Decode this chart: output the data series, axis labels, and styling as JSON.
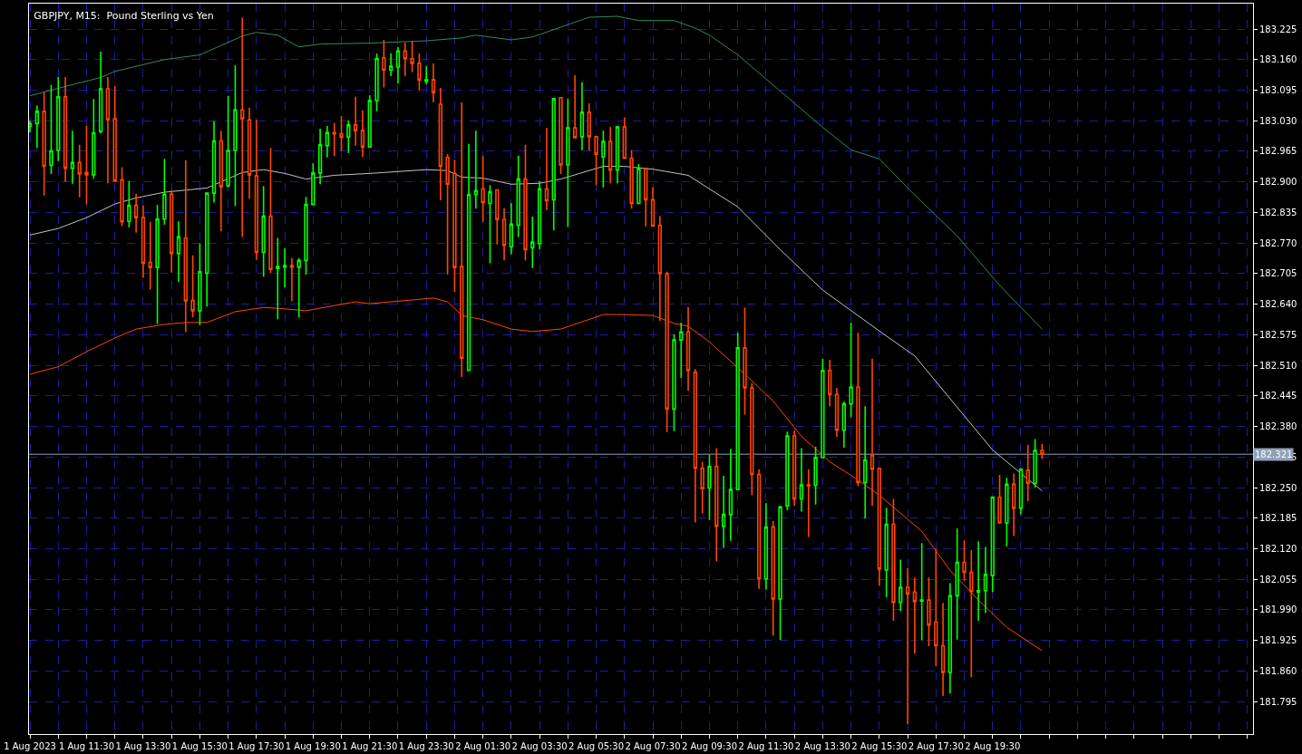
{
  "chart_data": {
    "type": "candlestick",
    "title": "GBPJPY, M15:  Pound Sterling vs Yen",
    "x": [
      "2023-08-01T09:30",
      "2023-08-01T09:45",
      "2023-08-01T10:00",
      "2023-08-01T10:15",
      "2023-08-01T10:30",
      "2023-08-01T10:45",
      "2023-08-01T11:00",
      "2023-08-01T11:15",
      "2023-08-01T11:30",
      "2023-08-01T11:45",
      "2023-08-01T12:00",
      "2023-08-01T12:15",
      "2023-08-01T12:30",
      "2023-08-01T12:45",
      "2023-08-01T13:00",
      "2023-08-01T13:15",
      "2023-08-01T13:30",
      "2023-08-01T13:45",
      "2023-08-01T14:00",
      "2023-08-01T14:15",
      "2023-08-01T14:30",
      "2023-08-01T14:45",
      "2023-08-01T15:00",
      "2023-08-01T15:15",
      "2023-08-01T15:30",
      "2023-08-01T15:45",
      "2023-08-01T16:00",
      "2023-08-01T16:15",
      "2023-08-01T16:30",
      "2023-08-01T16:45",
      "2023-08-01T17:00",
      "2023-08-01T17:15",
      "2023-08-01T17:30",
      "2023-08-01T17:45",
      "2023-08-01T18:00",
      "2023-08-01T18:15",
      "2023-08-01T18:30",
      "2023-08-01T18:45",
      "2023-08-01T19:00",
      "2023-08-01T19:15",
      "2023-08-01T19:30",
      "2023-08-01T19:45",
      "2023-08-01T20:00",
      "2023-08-01T20:15",
      "2023-08-01T20:30",
      "2023-08-01T20:45",
      "2023-08-01T21:00",
      "2023-08-01T21:15",
      "2023-08-01T21:30",
      "2023-08-01T21:45",
      "2023-08-01T22:00",
      "2023-08-01T22:15",
      "2023-08-01T22:30",
      "2023-08-01T22:45",
      "2023-08-01T23:00",
      "2023-08-01T23:15",
      "2023-08-01T23:30",
      "2023-08-01T23:45",
      "2023-08-02T00:00",
      "2023-08-02T00:15",
      "2023-08-02T00:30",
      "2023-08-02T00:45",
      "2023-08-02T01:00",
      "2023-08-02T01:15",
      "2023-08-02T01:30",
      "2023-08-02T01:45",
      "2023-08-02T02:00",
      "2023-08-02T02:15",
      "2023-08-02T02:30",
      "2023-08-02T02:45",
      "2023-08-02T03:00",
      "2023-08-02T03:15",
      "2023-08-02T03:30",
      "2023-08-02T03:45",
      "2023-08-02T04:00",
      "2023-08-02T04:15",
      "2023-08-02T04:30",
      "2023-08-02T04:45",
      "2023-08-02T05:00",
      "2023-08-02T05:15",
      "2023-08-02T05:30",
      "2023-08-02T05:45",
      "2023-08-02T06:00",
      "2023-08-02T06:15",
      "2023-08-02T06:30",
      "2023-08-02T06:45",
      "2023-08-02T07:00",
      "2023-08-02T07:15",
      "2023-08-02T07:30",
      "2023-08-02T07:45",
      "2023-08-02T08:00",
      "2023-08-02T08:15",
      "2023-08-02T08:30",
      "2023-08-02T08:45",
      "2023-08-02T09:00",
      "2023-08-02T09:15",
      "2023-08-02T09:30",
      "2023-08-02T09:45",
      "2023-08-02T10:00",
      "2023-08-02T10:15",
      "2023-08-02T10:30",
      "2023-08-02T10:45",
      "2023-08-02T11:00",
      "2023-08-02T11:15",
      "2023-08-02T11:30",
      "2023-08-02T11:45",
      "2023-08-02T12:00",
      "2023-08-02T12:15",
      "2023-08-02T12:30",
      "2023-08-02T12:45",
      "2023-08-02T13:00",
      "2023-08-02T13:15",
      "2023-08-02T13:30",
      "2023-08-02T13:45",
      "2023-08-02T14:00",
      "2023-08-02T14:15",
      "2023-08-02T14:30",
      "2023-08-02T14:45",
      "2023-08-02T15:00",
      "2023-08-02T15:15",
      "2023-08-02T15:30",
      "2023-08-02T15:45",
      "2023-08-02T16:00",
      "2023-08-02T16:15",
      "2023-08-02T16:30",
      "2023-08-02T16:45",
      "2023-08-02T17:00",
      "2023-08-02T17:15",
      "2023-08-02T17:30",
      "2023-08-02T17:45",
      "2023-08-02T18:00",
      "2023-08-02T18:15",
      "2023-08-02T18:30",
      "2023-08-02T18:45",
      "2023-08-02T19:00",
      "2023-08-02T19:15",
      "2023-08-02T19:30",
      "2023-08-02T19:45",
      "2023-08-02T20:00",
      "2023-08-02T20:15",
      "2023-08-02T20:30",
      "2023-08-02T20:45",
      "2023-08-02T21:00",
      "2023-08-02T21:15"
    ],
    "ohlc": [
      [
        183.018,
        183.03,
        183.005,
        183.024
      ],
      [
        183.024,
        183.062,
        182.972,
        183.05
      ],
      [
        183.05,
        183.091,
        182.871,
        182.933
      ],
      [
        182.935,
        183.106,
        182.917,
        182.966
      ],
      [
        182.967,
        183.123,
        182.944,
        183.081
      ],
      [
        183.081,
        183.123,
        182.9,
        182.929
      ],
      [
        182.929,
        183.009,
        182.896,
        182.941
      ],
      [
        182.941,
        182.979,
        182.867,
        182.917
      ],
      [
        182.92,
        183.019,
        182.852,
        182.915
      ],
      [
        182.915,
        183.076,
        182.907,
        183.004
      ],
      [
        183.007,
        183.177,
        183.003,
        183.098
      ],
      [
        183.098,
        183.123,
        182.897,
        183.032
      ],
      [
        183.034,
        183.103,
        182.9,
        182.902
      ],
      [
        182.904,
        182.931,
        182.806,
        182.815
      ],
      [
        182.816,
        182.902,
        182.803,
        182.85
      ],
      [
        182.85,
        182.875,
        182.792,
        182.824
      ],
      [
        182.824,
        182.85,
        182.696,
        182.727
      ],
      [
        182.729,
        182.815,
        182.671,
        182.718
      ],
      [
        182.718,
        182.851,
        182.598,
        182.821
      ],
      [
        182.821,
        182.949,
        182.809,
        182.874
      ],
      [
        182.874,
        182.882,
        182.707,
        182.748
      ],
      [
        182.748,
        182.816,
        182.687,
        182.783
      ],
      [
        182.781,
        182.946,
        182.581,
        182.647
      ],
      [
        182.648,
        182.744,
        182.612,
        182.626
      ],
      [
        182.626,
        182.769,
        182.595,
        182.709
      ],
      [
        182.706,
        182.876,
        182.635,
        182.876
      ],
      [
        182.876,
        183.029,
        182.856,
        182.987
      ],
      [
        182.987,
        183.009,
        182.795,
        182.89
      ],
      [
        182.892,
        183.083,
        182.888,
        182.967
      ],
      [
        182.967,
        183.148,
        182.849,
        183.053
      ],
      [
        183.053,
        183.249,
        182.783,
        183.034
      ],
      [
        183.032,
        183.058,
        182.864,
        182.915
      ],
      [
        182.913,
        183.032,
        182.734,
        182.75
      ],
      [
        182.75,
        182.891,
        182.698,
        182.827
      ],
      [
        182.827,
        182.972,
        182.706,
        182.714
      ],
      [
        182.716,
        182.781,
        182.608,
        182.72
      ],
      [
        182.719,
        182.759,
        182.676,
        182.722
      ],
      [
        182.722,
        182.738,
        182.646,
        182.719
      ],
      [
        182.719,
        182.738,
        182.612,
        182.733
      ],
      [
        182.733,
        182.868,
        182.703,
        182.852
      ],
      [
        182.852,
        182.94,
        182.852,
        182.919
      ],
      [
        182.919,
        183.013,
        182.895,
        182.979
      ],
      [
        182.977,
        183.019,
        182.952,
        183.005
      ],
      [
        183.005,
        183.025,
        182.955,
        183.002
      ],
      [
        183.002,
        183.04,
        182.966,
        182.995
      ],
      [
        182.995,
        183.031,
        182.961,
        183.021
      ],
      [
        183.021,
        183.081,
        182.977,
        183.009
      ],
      [
        183.009,
        183.052,
        182.953,
        182.974
      ],
      [
        182.974,
        183.084,
        182.974,
        183.073
      ],
      [
        183.073,
        183.173,
        183.05,
        183.162
      ],
      [
        183.164,
        183.202,
        183.101,
        183.138
      ],
      [
        183.138,
        183.173,
        183.125,
        183.146
      ],
      [
        183.144,
        183.187,
        183.109,
        183.178
      ],
      [
        183.178,
        183.196,
        183.125,
        183.162
      ],
      [
        183.162,
        183.2,
        183.133,
        183.152
      ],
      [
        183.152,
        183.173,
        183.094,
        183.117
      ],
      [
        183.114,
        183.146,
        183.107,
        183.117
      ],
      [
        183.117,
        183.152,
        183.069,
        183.09
      ],
      [
        183.065,
        183.1,
        182.861,
        182.933
      ],
      [
        182.952,
        182.959,
        182.703,
        182.895
      ],
      [
        182.918,
        182.947,
        182.666,
        182.718
      ],
      [
        182.72,
        183.069,
        182.485,
        182.525
      ],
      [
        182.499,
        182.981,
        182.499,
        182.873
      ],
      [
        182.873,
        183.009,
        182.843,
        182.881
      ],
      [
        182.885,
        182.955,
        182.815,
        182.856
      ],
      [
        182.854,
        182.893,
        182.727,
        182.879
      ],
      [
        182.883,
        182.883,
        182.767,
        182.82
      ],
      [
        182.82,
        182.844,
        182.733,
        182.765
      ],
      [
        182.762,
        182.855,
        182.746,
        182.81
      ],
      [
        182.808,
        182.956,
        182.783,
        182.906
      ],
      [
        182.906,
        182.979,
        182.733,
        182.756
      ],
      [
        182.76,
        182.826,
        182.717,
        182.772
      ],
      [
        182.769,
        182.902,
        182.757,
        182.885
      ],
      [
        182.885,
        183.015,
        182.84,
        182.86
      ],
      [
        182.862,
        183.077,
        182.797,
        183.077
      ],
      [
        183.079,
        183.079,
        182.917,
        182.936
      ],
      [
        182.936,
        183.077,
        182.804,
        183.015
      ],
      [
        183.015,
        183.127,
        182.994,
        182.994
      ],
      [
        182.996,
        183.112,
        182.967,
        183.048
      ],
      [
        183.048,
        183.067,
        182.967,
        182.996
      ],
      [
        182.996,
        182.996,
        182.893,
        182.959
      ],
      [
        182.953,
        183.009,
        182.888,
        182.986
      ],
      [
        182.986,
        183.017,
        182.897,
        182.925
      ],
      [
        182.925,
        183.019,
        182.897,
        183.017
      ],
      [
        183.017,
        183.037,
        182.95,
        182.95
      ],
      [
        182.95,
        182.968,
        182.843,
        182.854
      ],
      [
        182.854,
        182.938,
        182.854,
        182.928
      ],
      [
        182.928,
        182.928,
        182.805,
        182.862
      ],
      [
        182.862,
        182.889,
        182.805,
        182.806
      ],
      [
        182.808,
        182.827,
        182.604,
        182.705
      ],
      [
        182.704,
        182.709,
        182.368,
        182.417
      ],
      [
        182.417,
        182.576,
        182.37,
        182.564
      ],
      [
        182.564,
        182.601,
        182.483,
        182.581
      ],
      [
        182.581,
        182.634,
        182.456,
        182.499
      ],
      [
        182.495,
        182.502,
        182.176,
        182.291
      ],
      [
        182.291,
        182.305,
        182.195,
        182.248
      ],
      [
        182.249,
        182.32,
        182.181,
        182.295
      ],
      [
        182.295,
        182.334,
        182.093,
        182.168
      ],
      [
        182.168,
        182.275,
        182.122,
        182.193
      ],
      [
        182.193,
        182.332,
        182.137,
        182.246
      ],
      [
        182.246,
        182.579,
        182.246,
        182.547
      ],
      [
        182.547,
        182.633,
        182.405,
        182.462
      ],
      [
        182.462,
        182.472,
        182.234,
        182.278
      ],
      [
        182.278,
        182.289,
        182.035,
        182.056
      ],
      [
        182.056,
        182.217,
        182.033,
        182.166
      ],
      [
        182.166,
        182.179,
        181.935,
        182.013
      ],
      [
        182.013,
        182.211,
        181.926,
        182.209
      ],
      [
        182.211,
        182.369,
        182.202,
        182.36
      ],
      [
        182.36,
        182.371,
        182.211,
        182.226
      ],
      [
        182.226,
        182.334,
        182.199,
        182.256
      ],
      [
        182.256,
        182.289,
        182.145,
        182.254
      ],
      [
        182.255,
        182.337,
        182.214,
        182.314
      ],
      [
        182.314,
        182.524,
        182.314,
        182.499
      ],
      [
        182.499,
        182.522,
        182.423,
        182.448
      ],
      [
        182.448,
        182.462,
        182.358,
        182.372
      ],
      [
        182.372,
        182.433,
        182.335,
        182.428
      ],
      [
        182.428,
        182.601,
        182.4,
        182.464
      ],
      [
        182.464,
        182.579,
        182.253,
        182.261
      ],
      [
        182.261,
        182.423,
        182.184,
        182.309
      ],
      [
        182.318,
        182.524,
        182.211,
        182.289
      ],
      [
        182.291,
        182.291,
        182.041,
        182.077
      ],
      [
        182.075,
        182.207,
        182.017,
        182.172
      ],
      [
        182.172,
        182.226,
        181.967,
        182.006
      ],
      [
        182.006,
        182.097,
        181.987,
        182.038
      ],
      [
        182.038,
        182.079,
        181.747,
        182.024
      ],
      [
        182.028,
        182.059,
        181.897,
        182.008
      ],
      [
        182.009,
        182.132,
        181.925,
        182.011
      ],
      [
        182.011,
        182.059,
        181.913,
        181.958
      ],
      [
        181.964,
        182.12,
        181.87,
        181.914
      ],
      [
        181.914,
        182.005,
        181.807,
        181.857
      ],
      [
        181.857,
        182.047,
        181.812,
        182.02
      ],
      [
        182.02,
        182.163,
        181.927,
        182.091
      ],
      [
        182.091,
        182.138,
        182.052,
        182.07
      ],
      [
        182.07,
        182.117,
        181.847,
        182.029
      ],
      [
        182.028,
        182.136,
        181.967,
        182.031
      ],
      [
        182.031,
        182.124,
        181.983,
        182.065
      ],
      [
        182.063,
        182.23,
        182.028,
        182.23
      ],
      [
        182.23,
        182.277,
        182.175,
        182.175
      ],
      [
        182.175,
        182.271,
        182.125,
        182.257
      ],
      [
        182.257,
        182.28,
        182.147,
        182.206
      ],
      [
        182.206,
        182.291,
        182.193,
        182.289
      ],
      [
        182.287,
        182.341,
        182.221,
        182.259
      ],
      [
        182.259,
        182.353,
        182.25,
        182.329
      ],
      [
        182.329,
        182.343,
        182.311,
        182.321
      ]
    ],
    "colors": [
      "#00ff00",
      "#00ff00",
      "#ff4500",
      "#00ff00",
      "#00ff00",
      "#ff4500",
      "#00ff00",
      "#ff4500",
      "#ff4500",
      "#00ff00",
      "#00ff00",
      "#ff4500",
      "#ff4500",
      "#ff4500",
      "#00ff00",
      "#ff4500",
      "#ff4500",
      "#ff4500",
      "#00ff00",
      "#00ff00",
      "#ff4500",
      "#00ff00",
      "#ff4500",
      "#ff4500",
      "#00ff00",
      "#00ff00",
      "#00ff00",
      "#ff4500",
      "#00ff00",
      "#00ff00",
      "#ff4500",
      "#ff4500",
      "#ff4500",
      "#00ff00",
      "#ff4500",
      "#00ff00",
      "#00ff00",
      "#ff4500",
      "#00ff00",
      "#00ff00",
      "#00ff00",
      "#00ff00",
      "#00ff00",
      "#ff4500",
      "#ff4500",
      "#00ff00",
      "#ff4500",
      "#ff4500",
      "#00ff00",
      "#00ff00",
      "#ff4500",
      "#00ff00",
      "#00ff00",
      "#ff4500",
      "#ff4500",
      "#ff4500",
      "#00ff00",
      "#ff4500",
      "#ff4500",
      "#ff4500",
      "#ff4500",
      "#ff4500",
      "#00ff00",
      "#00ff00",
      "#ff4500",
      "#00ff00",
      "#ff4500",
      "#ff4500",
      "#00ff00",
      "#00ff00",
      "#ff4500",
      "#00ff00",
      "#00ff00",
      "#ff4500",
      "#00ff00",
      "#ff4500",
      "#00ff00",
      "#ff4500",
      "#00ff00",
      "#ff4500",
      "#ff4500",
      "#00ff00",
      "#ff4500",
      "#00ff00",
      "#ff4500",
      "#ff4500",
      "#00ff00",
      "#ff4500",
      "#ff4500",
      "#ff4500",
      "#ff4500",
      "#00ff00",
      "#00ff00",
      "#ff4500",
      "#ff4500",
      "#ff4500",
      "#00ff00",
      "#ff4500",
      "#00ff00",
      "#00ff00",
      "#00ff00",
      "#ff4500",
      "#ff4500",
      "#ff4500",
      "#00ff00",
      "#ff4500",
      "#00ff00",
      "#00ff00",
      "#ff4500",
      "#00ff00",
      "#ff4500",
      "#00ff00",
      "#00ff00",
      "#ff4500",
      "#ff4500",
      "#00ff00",
      "#00ff00",
      "#ff4500",
      "#00ff00",
      "#ff4500",
      "#ff4500",
      "#00ff00",
      "#ff4500",
      "#00ff00",
      "#ff4500",
      "#ff4500",
      "#00ff00",
      "#ff4500",
      "#ff4500",
      "#ff4500",
      "#00ff00",
      "#00ff00",
      "#ff4500",
      "#ff4500",
      "#00ff00",
      "#00ff00",
      "#00ff00",
      "#ff4500",
      "#00ff00",
      "#ff4500",
      "#00ff00",
      "#ff4500",
      "#00ff00",
      "#ff4500"
    ],
    "series": [
      {
        "type": "line",
        "color": "#2e8b57",
        "x": [
          "2023-08-01T09:30",
          "2023-08-01T10:30",
          "2023-08-01T12:00",
          "2023-08-01T12:30",
          "2023-08-01T14:15",
          "2023-08-01T15:30",
          "2023-08-01T17:00",
          "2023-08-01T17:30",
          "2023-08-01T18:15",
          "2023-08-01T19:00",
          "2023-08-01T19:45",
          "2023-08-01T21:30",
          "2023-08-01T23:30",
          "2023-08-02T00:45",
          "2023-08-02T01:15",
          "2023-08-02T02:30",
          "2023-08-02T03:15",
          "2023-08-02T05:15",
          "2023-08-02T06:15",
          "2023-08-02T07:00",
          "2023-08-02T08:15",
          "2023-08-02T09:00",
          "2023-08-02T09:30",
          "2023-08-02T10:30",
          "2023-08-02T12:00",
          "2023-08-02T13:30",
          "2023-08-02T14:30",
          "2023-08-02T15:30",
          "2023-08-02T16:45",
          "2023-08-02T18:15",
          "2023-08-02T19:45",
          "2023-08-02T21:15"
        ],
        "values": [
          183.083,
          183.099,
          183.122,
          183.135,
          183.16,
          183.17,
          183.21,
          183.218,
          183.212,
          183.187,
          183.193,
          183.195,
          183.2,
          183.206,
          183.212,
          183.202,
          183.208,
          183.25,
          183.252,
          183.243,
          183.243,
          183.227,
          183.212,
          183.17,
          183.093,
          183.016,
          182.968,
          182.949,
          182.872,
          182.785,
          182.68,
          182.587
        ]
      },
      {
        "type": "line",
        "color": "#c0c0c0",
        "x": [
          "2023-08-01T09:30",
          "2023-08-01T10:30",
          "2023-08-01T11:30",
          "2023-08-01T12:30",
          "2023-08-01T13:15",
          "2023-08-01T14:15",
          "2023-08-01T15:45",
          "2023-08-01T17:00",
          "2023-08-01T17:45",
          "2023-08-01T18:30",
          "2023-08-01T19:15",
          "2023-08-01T20:15",
          "2023-08-01T21:30",
          "2023-08-01T23:30",
          "2023-08-02T00:15",
          "2023-08-02T00:45",
          "2023-08-02T01:30",
          "2023-08-02T02:30",
          "2023-08-02T03:30",
          "2023-08-02T04:15",
          "2023-08-02T05:45",
          "2023-08-02T06:30",
          "2023-08-02T07:30",
          "2023-08-02T08:45",
          "2023-08-02T09:30",
          "2023-08-02T10:30",
          "2023-08-02T12:00",
          "2023-08-02T13:30",
          "2023-08-02T15:30",
          "2023-08-02T16:45",
          "2023-08-02T18:00",
          "2023-08-02T19:30",
          "2023-08-02T21:15"
        ],
        "values": [
          182.787,
          182.801,
          182.824,
          182.853,
          182.866,
          182.878,
          182.887,
          182.92,
          182.926,
          182.918,
          182.906,
          182.914,
          182.918,
          182.926,
          182.924,
          182.91,
          182.908,
          182.895,
          182.897,
          182.906,
          182.933,
          182.933,
          182.927,
          182.914,
          182.885,
          182.847,
          182.756,
          182.67,
          182.583,
          182.53,
          182.439,
          182.33,
          182.243
        ]
      },
      {
        "type": "line",
        "color": "#ff4500",
        "x": [
          "2023-08-01T09:30",
          "2023-08-01T10:30",
          "2023-08-01T11:30",
          "2023-08-01T12:30",
          "2023-08-01T13:15",
          "2023-08-01T14:15",
          "2023-08-01T15:00",
          "2023-08-01T15:45",
          "2023-08-01T16:45",
          "2023-08-01T17:45",
          "2023-08-01T18:30",
          "2023-08-01T19:15",
          "2023-08-01T20:15",
          "2023-08-01T21:00",
          "2023-08-01T21:30",
          "2023-08-01T22:15",
          "2023-08-01T23:45",
          "2023-08-02T00:15",
          "2023-08-02T00:45",
          "2023-08-02T01:30",
          "2023-08-02T02:30",
          "2023-08-02T03:15",
          "2023-08-02T04:15",
          "2023-08-02T05:45",
          "2023-08-02T06:15",
          "2023-08-02T07:30",
          "2023-08-02T08:15",
          "2023-08-02T08:45",
          "2023-08-02T09:30",
          "2023-08-02T10:45",
          "2023-08-02T11:45",
          "2023-08-02T12:45",
          "2023-08-02T13:45",
          "2023-08-02T14:45",
          "2023-08-02T15:30",
          "2023-08-02T17:00",
          "2023-08-02T18:00",
          "2023-08-02T19:00",
          "2023-08-02T20:00",
          "2023-08-02T21:15"
        ],
        "values": [
          182.491,
          182.507,
          182.539,
          182.568,
          182.587,
          182.597,
          182.601,
          182.601,
          182.624,
          182.633,
          182.63,
          182.626,
          182.637,
          182.645,
          182.641,
          182.645,
          182.653,
          182.645,
          182.616,
          182.607,
          182.587,
          182.582,
          182.587,
          182.618,
          182.618,
          182.616,
          182.599,
          182.593,
          182.56,
          182.491,
          182.434,
          182.359,
          182.305,
          182.266,
          182.234,
          182.157,
          182.074,
          182.011,
          181.953,
          181.903
        ]
      }
    ],
    "xlim": [
      "2023-08-01T09:28",
      "2023-08-03T04:42"
    ],
    "xticks": [
      {
        "value": "2023-08-01T09:30",
        "label": "1 Aug 2023"
      },
      {
        "value": "2023-08-01T10:30",
        "label": null
      },
      {
        "value": "2023-08-01T11:30",
        "label": "1 Aug 11:30"
      },
      {
        "value": "2023-08-01T12:30",
        "label": null
      },
      {
        "value": "2023-08-01T13:30",
        "label": "1 Aug 13:30"
      },
      {
        "value": "2023-08-01T14:30",
        "label": null
      },
      {
        "value": "2023-08-01T15:30",
        "label": "1 Aug 15:30"
      },
      {
        "value": "2023-08-01T16:30",
        "label": null
      },
      {
        "value": "2023-08-01T17:30",
        "label": "1 Aug 17:30"
      },
      {
        "value": "2023-08-01T18:30",
        "label": null
      },
      {
        "value": "2023-08-01T19:30",
        "label": "1 Aug 19:30"
      },
      {
        "value": "2023-08-01T20:30",
        "label": null
      },
      {
        "value": "2023-08-01T21:30",
        "label": "1 Aug 21:30"
      },
      {
        "value": "2023-08-01T22:30",
        "label": null
      },
      {
        "value": "2023-08-01T23:30",
        "label": "1 Aug 23:30"
      },
      {
        "value": "2023-08-02T00:30",
        "label": null
      },
      {
        "value": "2023-08-02T01:30",
        "label": "2 Aug 01:30"
      },
      {
        "value": "2023-08-02T02:30",
        "label": null
      },
      {
        "value": "2023-08-02T03:30",
        "label": "2 Aug 03:30"
      },
      {
        "value": "2023-08-02T04:30",
        "label": null
      },
      {
        "value": "2023-08-02T05:30",
        "label": "2 Aug 05:30"
      },
      {
        "value": "2023-08-02T06:30",
        "label": null
      },
      {
        "value": "2023-08-02T07:30",
        "label": "2 Aug 07:30"
      },
      {
        "value": "2023-08-02T08:30",
        "label": null
      },
      {
        "value": "2023-08-02T09:30",
        "label": "2 Aug 09:30"
      },
      {
        "value": "2023-08-02T10:30",
        "label": null
      },
      {
        "value": "2023-08-02T11:30",
        "label": "2 Aug 11:30"
      },
      {
        "value": "2023-08-02T12:30",
        "label": null
      },
      {
        "value": "2023-08-02T13:30",
        "label": "2 Aug 13:30"
      },
      {
        "value": "2023-08-02T14:30",
        "label": null
      },
      {
        "value": "2023-08-02T15:30",
        "label": "2 Aug 15:30"
      },
      {
        "value": "2023-08-02T16:30",
        "label": null
      },
      {
        "value": "2023-08-02T17:30",
        "label": "2 Aug 17:30"
      },
      {
        "value": "2023-08-02T18:30",
        "label": null
      },
      {
        "value": "2023-08-02T19:30",
        "label": "2 Aug 19:30"
      },
      {
        "value": "2023-08-02T20:30",
        "label": null
      },
      {
        "value": "2023-08-02T21:30",
        "label": null
      },
      {
        "value": "2023-08-02T22:30",
        "label": null
      },
      {
        "value": "2023-08-02T23:30",
        "label": null
      },
      {
        "value": "2023-08-03T00:30",
        "label": null
      },
      {
        "value": "2023-08-03T01:30",
        "label": null
      },
      {
        "value": "2023-08-03T02:30",
        "label": null
      },
      {
        "value": "2023-08-03T03:30",
        "label": null
      },
      {
        "value": "2023-08-03T04:30",
        "label": null
      }
    ],
    "ylim": [
      181.726,
      183.279
    ],
    "yticks": [
      181.795,
      {
        "value": 181.86,
        "label": "181.860"
      },
      181.925,
      {
        "value": 181.99,
        "label": "181.990"
      },
      182.055,
      {
        "value": 182.12,
        "label": "182.120"
      },
      182.185,
      {
        "value": 182.25,
        "label": "182.250"
      },
      182.315,
      {
        "value": 182.38,
        "label": "182.380"
      },
      182.445,
      {
        "value": 182.51,
        "label": "182.510"
      },
      182.575,
      {
        "value": 182.64,
        "label": "182.640"
      },
      182.705,
      {
        "value": 182.77,
        "label": "182.770"
      },
      182.835,
      {
        "value": 182.9,
        "label": "182.900"
      },
      182.965,
      {
        "value": 183.03,
        "label": "183.030"
      },
      183.095,
      {
        "value": 183.16,
        "label": "183.160"
      },
      183.225
    ],
    "ref_lines": [
      {
        "axis": "y",
        "value": 182.321,
        "label": "182.321",
        "color": "#8fa0b8"
      }
    ],
    "grid": true
  }
}
